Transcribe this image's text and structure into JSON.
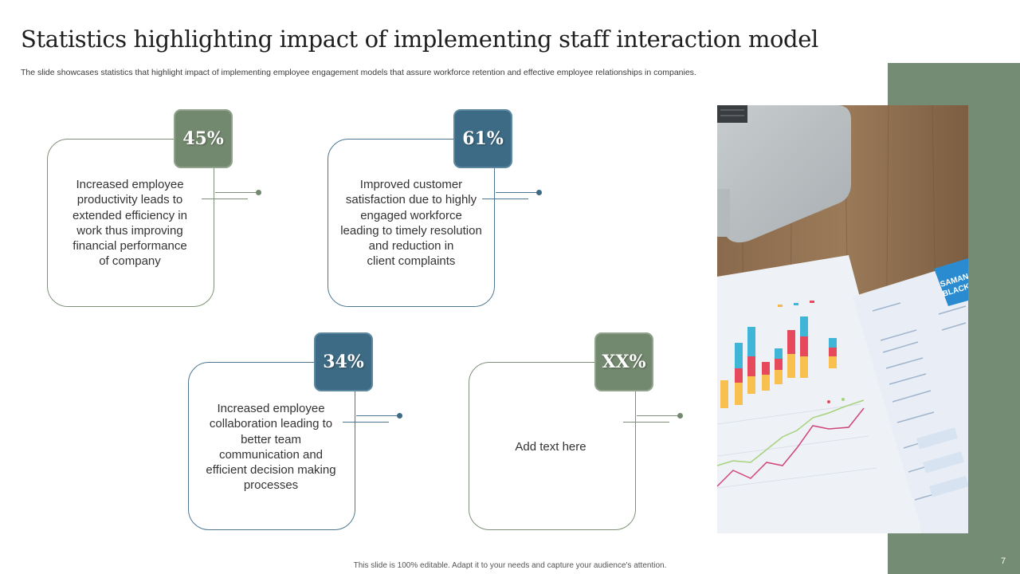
{
  "slide": {
    "title": "Statistics highlighting impact of implementing staff interaction model",
    "subtitle": "The slide showcases statistics that highlight impact of implementing employee engagement models that assure workforce retention and effective employee relationships in companies.",
    "footer": "This slide is 100% editable. Adapt it to your needs and capture your audience's attention.",
    "page_number": "7"
  },
  "colors": {
    "sage": "#73896f",
    "teal": "#3d6b85",
    "sage_border": "#7e9178",
    "teal_border": "#4d7790",
    "panel": "#748c73"
  },
  "cards": [
    {
      "percent": "45%",
      "lines": [
        "Increased employee",
        "productivity leads to",
        "extended efficiency in",
        "work thus improving",
        "financial performance",
        "of company"
      ],
      "accent": "sage"
    },
    {
      "percent": "61%",
      "lines": [
        "Improved customer",
        "satisfaction due to highly",
        "engaged workforce",
        "leading to timely resolution",
        "and reduction in",
        "client complaints"
      ],
      "accent": "teal"
    },
    {
      "percent": "34%",
      "lines": [
        "Increased employee",
        "collaboration leading to",
        "better team",
        "communication and",
        "efficient decision making",
        "processes"
      ],
      "accent": "teal"
    },
    {
      "percent": "XX%",
      "lines": [
        "Add text here"
      ],
      "accent": "sage"
    }
  ],
  "image": {
    "icons": [
      "laptop-icon",
      "bar-chart-icon",
      "line-chart-icon",
      "resume-document-icon"
    ],
    "resume_header": [
      "SAMAN",
      "BLACK"
    ]
  }
}
